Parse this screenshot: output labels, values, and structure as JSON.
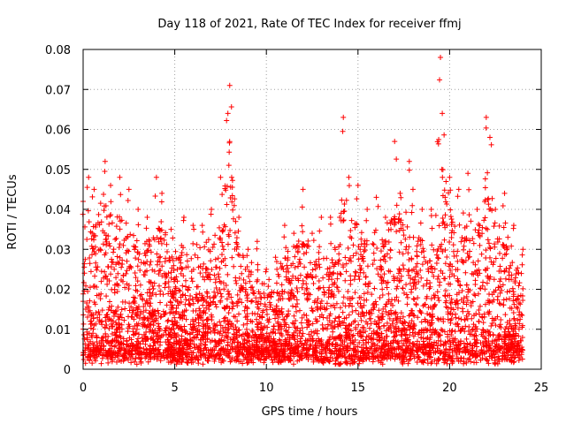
{
  "chart_data": {
    "type": "scatter",
    "title": "Day 118 of 2021, Rate Of TEC Index for receiver ffmj",
    "xlabel": "GPS time / hours",
    "ylabel": "ROTI / TECUs",
    "xlim": [
      0,
      25
    ],
    "ylim": [
      0,
      0.08
    ],
    "xticks": [
      0,
      5,
      10,
      15,
      20,
      25
    ],
    "xtick_labels": [
      "0",
      "5",
      "10",
      "15",
      "20",
      "25"
    ],
    "yticks": [
      0,
      0.01,
      0.02,
      0.03,
      0.04,
      0.05,
      0.06,
      0.07,
      0.08
    ],
    "ytick_labels": [
      "0",
      "0.01",
      "0.02",
      "0.03",
      "0.04",
      "0.05",
      "0.06",
      "0.07",
      "0.08"
    ],
    "grid": true,
    "marker": "+",
    "color": "#ff0000",
    "series": [
      {
        "name": "ROTI",
        "envelope_note": "dense cloud of points; upper envelope sampled below",
        "x": [
          0.0,
          0.3,
          0.6,
          1.2,
          1.5,
          2.0,
          2.5,
          3.0,
          3.5,
          4.0,
          4.3,
          4.8,
          5.5,
          6.0,
          6.5,
          7.0,
          7.5,
          7.9,
          8.0,
          8.5,
          9.0,
          9.5,
          10.0,
          10.5,
          11.0,
          11.5,
          12.0,
          12.5,
          13.0,
          13.5,
          14.0,
          14.2,
          14.5,
          15.0,
          15.5,
          16.0,
          16.5,
          17.0,
          17.3,
          17.8,
          18.0,
          18.5,
          19.0,
          19.5,
          19.6,
          20.0,
          20.5,
          21.0,
          21.5,
          22.0,
          22.2,
          22.5,
          23.0,
          23.5,
          24.0
        ],
        "ymax": [
          0.042,
          0.048,
          0.045,
          0.052,
          0.046,
          0.048,
          0.045,
          0.04,
          0.038,
          0.048,
          0.044,
          0.035,
          0.038,
          0.036,
          0.036,
          0.04,
          0.048,
          0.064,
          0.071,
          0.038,
          0.03,
          0.032,
          0.025,
          0.028,
          0.036,
          0.034,
          0.045,
          0.034,
          0.038,
          0.038,
          0.038,
          0.063,
          0.048,
          0.046,
          0.04,
          0.043,
          0.038,
          0.057,
          0.044,
          0.052,
          0.045,
          0.04,
          0.04,
          0.078,
          0.064,
          0.048,
          0.045,
          0.049,
          0.04,
          0.063,
          0.058,
          0.04,
          0.044,
          0.036,
          0.03
        ],
        "ymin_typical": 0.004
      }
    ]
  }
}
